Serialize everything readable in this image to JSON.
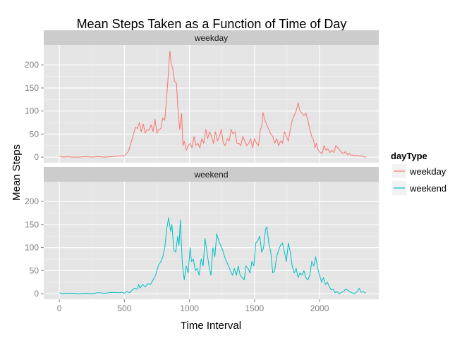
{
  "chart_data": {
    "type": "line",
    "title": "Mean Steps Taken as a Function of Time of Day",
    "xlabel": "Time Interval",
    "ylabel": "Mean Steps",
    "xlim": [
      -120,
      2455
    ],
    "ylim": [
      -12,
      243
    ],
    "x_ticks": [
      0,
      500,
      1000,
      1500,
      2000
    ],
    "x_tick_labels": [
      "0",
      "500",
      "1000",
      "1500",
      "2000"
    ],
    "y_ticks": [
      0,
      50,
      100,
      150,
      200
    ],
    "y_tick_labels": [
      "0",
      "50",
      "100",
      "150",
      "200"
    ],
    "grid": true,
    "legend": {
      "title": "dayType",
      "placement": "right",
      "entries": [
        "weekday",
        "weekend"
      ]
    },
    "colors": {
      "weekday": "#F8766D",
      "weekend": "#00BFC4"
    },
    "facets": [
      {
        "label": "weekday",
        "series": {
          "name": "weekday",
          "points": [
            [
              0,
              2
            ],
            [
              30,
              0
            ],
            [
              60,
              1
            ],
            [
              100,
              0
            ],
            [
              150,
              0
            ],
            [
              200,
              1
            ],
            [
              250,
              0
            ],
            [
              300,
              1
            ],
            [
              350,
              0
            ],
            [
              400,
              1
            ],
            [
              450,
              2
            ],
            [
              500,
              3
            ],
            [
              510,
              6
            ],
            [
              530,
              12
            ],
            [
              545,
              25
            ],
            [
              560,
              40
            ],
            [
              575,
              55
            ],
            [
              585,
              65
            ],
            [
              600,
              62
            ],
            [
              615,
              75
            ],
            [
              630,
              55
            ],
            [
              645,
              72
            ],
            [
              660,
              52
            ],
            [
              675,
              60
            ],
            [
              690,
              58
            ],
            [
              705,
              70
            ],
            [
              720,
              55
            ],
            [
              735,
              82
            ],
            [
              750,
              52
            ],
            [
              765,
              60
            ],
            [
              780,
              62
            ],
            [
              795,
              85
            ],
            [
              810,
              80
            ],
            [
              825,
              130
            ],
            [
              835,
              170
            ],
            [
              845,
              215
            ],
            [
              850,
              230
            ],
            [
              860,
              200
            ],
            [
              870,
              195
            ],
            [
              885,
              165
            ],
            [
              900,
              160
            ],
            [
              910,
              110
            ],
            [
              925,
              60
            ],
            [
              940,
              95
            ],
            [
              950,
              25
            ],
            [
              960,
              35
            ],
            [
              975,
              15
            ],
            [
              990,
              25
            ],
            [
              1005,
              30
            ],
            [
              1020,
              20
            ],
            [
              1035,
              45
            ],
            [
              1050,
              25
            ],
            [
              1065,
              30
            ],
            [
              1080,
              20
            ],
            [
              1095,
              40
            ],
            [
              1110,
              30
            ],
            [
              1125,
              60
            ],
            [
              1140,
              40
            ],
            [
              1155,
              55
            ],
            [
              1170,
              45
            ],
            [
              1185,
              30
            ],
            [
              1200,
              55
            ],
            [
              1215,
              35
            ],
            [
              1230,
              45
            ],
            [
              1245,
              60
            ],
            [
              1260,
              30
            ],
            [
              1275,
              25
            ],
            [
              1290,
              40
            ],
            [
              1305,
              35
            ],
            [
              1320,
              60
            ],
            [
              1335,
              50
            ],
            [
              1350,
              55
            ],
            [
              1365,
              30
            ],
            [
              1380,
              30
            ],
            [
              1395,
              25
            ],
            [
              1410,
              45
            ],
            [
              1425,
              35
            ],
            [
              1440,
              25
            ],
            [
              1455,
              30
            ],
            [
              1470,
              40
            ],
            [
              1485,
              20
            ],
            [
              1500,
              40
            ],
            [
              1515,
              30
            ],
            [
              1530,
              25
            ],
            [
              1545,
              60
            ],
            [
              1555,
              65
            ],
            [
              1565,
              97
            ],
            [
              1580,
              80
            ],
            [
              1595,
              70
            ],
            [
              1610,
              60
            ],
            [
              1625,
              50
            ],
            [
              1640,
              45
            ],
            [
              1655,
              30
            ],
            [
              1670,
              40
            ],
            [
              1685,
              25
            ],
            [
              1700,
              35
            ],
            [
              1715,
              30
            ],
            [
              1730,
              55
            ],
            [
              1745,
              45
            ],
            [
              1760,
              35
            ],
            [
              1775,
              60
            ],
            [
              1790,
              80
            ],
            [
              1805,
              90
            ],
            [
              1820,
              100
            ],
            [
              1835,
              118
            ],
            [
              1850,
              100
            ],
            [
              1865,
              95
            ],
            [
              1880,
              90
            ],
            [
              1895,
              95
            ],
            [
              1910,
              80
            ],
            [
              1925,
              60
            ],
            [
              1940,
              45
            ],
            [
              1955,
              35
            ],
            [
              1965,
              20
            ],
            [
              1975,
              30
            ],
            [
              1990,
              15
            ],
            [
              2005,
              10
            ],
            [
              2020,
              8
            ],
            [
              2035,
              25
            ],
            [
              2050,
              15
            ],
            [
              2065,
              18
            ],
            [
              2080,
              10
            ],
            [
              2095,
              15
            ],
            [
              2110,
              10
            ],
            [
              2125,
              25
            ],
            [
              2140,
              20
            ],
            [
              2155,
              15
            ],
            [
              2170,
              10
            ],
            [
              2185,
              8
            ],
            [
              2200,
              12
            ],
            [
              2215,
              5
            ],
            [
              2230,
              8
            ],
            [
              2245,
              3
            ],
            [
              2260,
              5
            ],
            [
              2275,
              2
            ],
            [
              2290,
              4
            ],
            [
              2305,
              2
            ],
            [
              2320,
              3
            ],
            [
              2335,
              1
            ],
            [
              2355,
              0
            ]
          ]
        }
      },
      {
        "label": "weekend",
        "series": {
          "name": "weekend",
          "points": [
            [
              0,
              2
            ],
            [
              25,
              0
            ],
            [
              50,
              1
            ],
            [
              100,
              1
            ],
            [
              150,
              0
            ],
            [
              200,
              1
            ],
            [
              250,
              0
            ],
            [
              300,
              2
            ],
            [
              350,
              1
            ],
            [
              400,
              3
            ],
            [
              450,
              2
            ],
            [
              480,
              3
            ],
            [
              500,
              1
            ],
            [
              520,
              5
            ],
            [
              540,
              2
            ],
            [
              560,
              8
            ],
            [
              580,
              12
            ],
            [
              600,
              10
            ],
            [
              610,
              20
            ],
            [
              620,
              12
            ],
            [
              640,
              20
            ],
            [
              660,
              15
            ],
            [
              680,
              22
            ],
            [
              700,
              20
            ],
            [
              720,
              30
            ],
            [
              740,
              40
            ],
            [
              760,
              60
            ],
            [
              780,
              70
            ],
            [
              795,
              80
            ],
            [
              810,
              100
            ],
            [
              825,
              140
            ],
            [
              840,
              165
            ],
            [
              855,
              135
            ],
            [
              865,
              150
            ],
            [
              880,
              95
            ],
            [
              895,
              90
            ],
            [
              910,
              125
            ],
            [
              920,
              105
            ],
            [
              930,
              160
            ],
            [
              945,
              65
            ],
            [
              960,
              30
            ],
            [
              975,
              60
            ],
            [
              990,
              45
            ],
            [
              1005,
              100
            ],
            [
              1015,
              70
            ],
            [
              1030,
              75
            ],
            [
              1045,
              50
            ],
            [
              1060,
              55
            ],
            [
              1075,
              40
            ],
            [
              1090,
              75
            ],
            [
              1105,
              60
            ],
            [
              1120,
              120
            ],
            [
              1135,
              90
            ],
            [
              1150,
              60
            ],
            [
              1165,
              40
            ],
            [
              1180,
              100
            ],
            [
              1195,
              80
            ],
            [
              1210,
              130
            ],
            [
              1225,
              115
            ],
            [
              1240,
              105
            ],
            [
              1255,
              95
            ],
            [
              1270,
              80
            ],
            [
              1285,
              70
            ],
            [
              1300,
              60
            ],
            [
              1315,
              50
            ],
            [
              1330,
              40
            ],
            [
              1345,
              55
            ],
            [
              1360,
              40
            ],
            [
              1375,
              60
            ],
            [
              1390,
              40
            ],
            [
              1405,
              35
            ],
            [
              1420,
              30
            ],
            [
              1435,
              60
            ],
            [
              1450,
              55
            ],
            [
              1465,
              45
            ],
            [
              1480,
              70
            ],
            [
              1495,
              60
            ],
            [
              1510,
              110
            ],
            [
              1525,
              115
            ],
            [
              1540,
              125
            ],
            [
              1555,
              90
            ],
            [
              1570,
              100
            ],
            [
              1585,
              140
            ],
            [
              1595,
              145
            ],
            [
              1610,
              110
            ],
            [
              1625,
              90
            ],
            [
              1640,
              45
            ],
            [
              1655,
              50
            ],
            [
              1670,
              80
            ],
            [
              1685,
              95
            ],
            [
              1700,
              105
            ],
            [
              1715,
              110
            ],
            [
              1730,
              90
            ],
            [
              1745,
              70
            ],
            [
              1760,
              110
            ],
            [
              1775,
              90
            ],
            [
              1790,
              60
            ],
            [
              1805,
              45
            ],
            [
              1820,
              55
            ],
            [
              1835,
              35
            ],
            [
              1850,
              45
            ],
            [
              1865,
              40
            ],
            [
              1880,
              50
            ],
            [
              1895,
              35
            ],
            [
              1910,
              30
            ],
            [
              1925,
              40
            ],
            [
              1940,
              70
            ],
            [
              1955,
              60
            ],
            [
              1970,
              80
            ],
            [
              1985,
              55
            ],
            [
              2000,
              40
            ],
            [
              2015,
              25
            ],
            [
              2030,
              35
            ],
            [
              2045,
              20
            ],
            [
              2060,
              25
            ],
            [
              2075,
              15
            ],
            [
              2090,
              8
            ],
            [
              2105,
              10
            ],
            [
              2120,
              2
            ],
            [
              2135,
              5
            ],
            [
              2150,
              0
            ],
            [
              2170,
              3
            ],
            [
              2185,
              5
            ],
            [
              2200,
              10
            ],
            [
              2215,
              8
            ],
            [
              2230,
              5
            ],
            [
              2250,
              2
            ],
            [
              2270,
              0
            ],
            [
              2290,
              5
            ],
            [
              2305,
              12
            ],
            [
              2320,
              3
            ],
            [
              2335,
              5
            ],
            [
              2355,
              1
            ]
          ]
        }
      }
    ]
  }
}
